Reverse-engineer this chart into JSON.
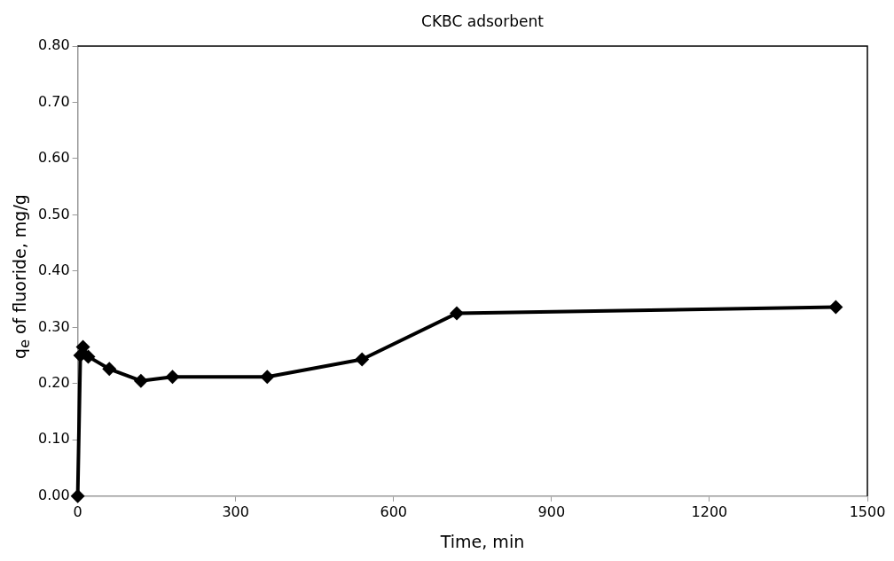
{
  "chart_data": {
    "type": "line",
    "title": "CKBC adsorbent",
    "xlabel": "Time, min",
    "ylabel": "q$_{e}$ of fluoride, mg/g",
    "x": [
      0,
      5,
      10,
      20,
      60,
      120,
      180,
      360,
      540,
      720,
      1440
    ],
    "series": [
      {
        "color": "#000000",
        "values": [
          0,
          0.25,
          0.265,
          0.248,
          0.226,
          0.205,
          0.212,
          0.212,
          0.243,
          0.325,
          0.336
        ]
      }
    ],
    "xlim": [
      0,
      1500
    ],
    "xticks": [
      0,
      300,
      600,
      900,
      1200,
      1500
    ],
    "ylim": [
      0,
      0.8
    ],
    "yticks": [
      {
        "value": 0,
        "label": "0.00"
      },
      {
        "value": 0.1,
        "label": "0.10"
      },
      {
        "value": 0.2,
        "label": "0.20"
      },
      {
        "value": 0.3,
        "label": "0.30"
      },
      {
        "value": 0.4,
        "label": "0.40"
      },
      {
        "value": 0.5,
        "label": "0.50"
      },
      {
        "value": 0.6,
        "label": "0.60"
      },
      {
        "value": 0.7,
        "label": "0.70"
      },
      {
        "value": 0.8,
        "label": "0.80"
      }
    ],
    "grid": false,
    "legend": false,
    "marker": "diamond",
    "line_style": "solid"
  }
}
